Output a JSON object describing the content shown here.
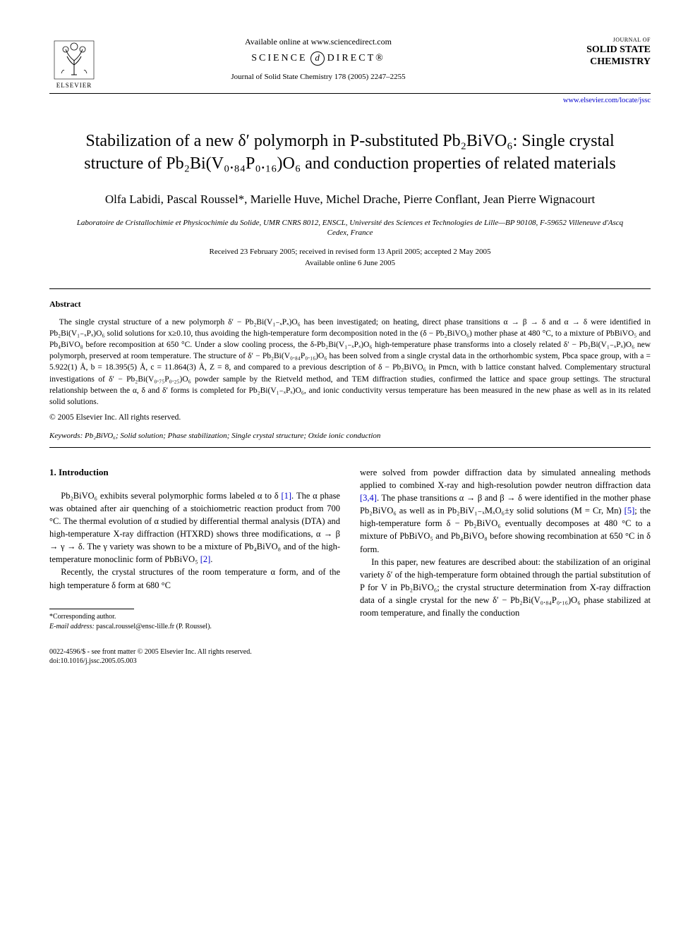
{
  "header": {
    "publisher_name": "ELSEVIER",
    "available_text": "Available online at www.sciencedirect.com",
    "sciencedirect_left": "SCIENCE",
    "sciencedirect_mid": "d",
    "sciencedirect_right": "DIRECT®",
    "journal_reference": "Journal of Solid State Chemistry 178 (2005) 2247–2255",
    "journal_small": "JOURNAL OF",
    "journal_title_1": "SOLID STATE",
    "journal_title_2": "CHEMISTRY",
    "journal_link": "www.elsevier.com/locate/jssc"
  },
  "title": "Stabilization of a new δ′ polymorph in P-substituted Pb₂BiVO₆: Single crystal structure of Pb₂Bi(V₀.₈₄P₀.₁₆)O₆ and conduction properties of related materials",
  "authors": "Olfa Labidi, Pascal Roussel*, Marielle Huve, Michel Drache, Pierre Conflant, Jean Pierre Wignacourt",
  "affiliation": "Laboratoire de Cristallochimie et Physicochimie du Solide, UMR CNRS 8012, ENSCL, Université des Sciences et Technologies de Lille—BP 90108, F-59652 Villeneuve d'Ascq Cedex, France",
  "dates_line1": "Received 23 February 2005; received in revised form 13 April 2005; accepted 2 May 2005",
  "dates_line2": "Available online 6 June 2005",
  "abstract_heading": "Abstract",
  "abstract_text": "The single crystal structure of a new polymorph δ′ − Pb₂Bi(V₁₋ₓPₓ)O₆ has been investigated; on heating, direct phase transitions α → β → δ and α → δ were identified in Pb₂Bi(V₁₋ₓPₓ)O₆ solid solutions for x≥0.10, thus avoiding the high-temperature form decomposition noted in the (δ − Pb₂BiVO₆) mother phase at 480 °C, to a mixture of PbBiVO₅ and Pb₄BiVO₈ before recomposition at 650 °C. Under a slow cooling process, the δ-Pb₂Bi(V₁₋ₓPₓ)O₆ high-temperature phase transforms into a closely related δ′ − Pb₂Bi(V₁₋ₓPₓ)O₆ new polymorph, preserved at room temperature. The structure of δ′ − Pb₂Bi(V₀.₈₄P₀.₁₆)O₆ has been solved from a single crystal data in the orthorhombic system, Pbca space group, with a = 5.922(1) Å, b = 18.395(5) Å, c = 11.864(3) Å, Z = 8, and compared to a previous description of δ − Pb₂BiVO₆ in Pmcn, with b lattice constant halved. Complementary structural investigations of δ′ − Pb₂Bi(V₀.₇₅P₀.₂₅)O₆ powder sample by the Rietveld method, and TEM diffraction studies, confirmed the lattice and space group settings. The structural relationship between the α, δ and δ′ forms is completed for Pb₂Bi(V₁₋ₓPₓ)O₆, and ionic conductivity versus temperature has been measured in the new phase as well as in its related solid solutions.",
  "copyright": "© 2005 Elsevier Inc. All rights reserved.",
  "keywords_label": "Keywords:",
  "keywords": "Pb₂BiVO₆; Solid solution; Phase stabilization; Single crystal structure; Oxide ionic conduction",
  "intro_heading": "1. Introduction",
  "col_left_p1": "Pb₂BiVO₆ exhibits several polymorphic forms labeled α to δ [1]. The α phase was obtained after air quenching of a stoichiometric reaction product from 700 °C. The thermal evolution of α studied by differential thermal analysis (DTA) and high-temperature X-ray diffraction (HTXRD) shows three modifications, α → β → γ → δ. The γ variety was shown to be a mixture of Pb₄BiVO₈ and of the high-temperature monoclinic form of PbBiVO₅ [2].",
  "col_left_p2": "Recently, the crystal structures of the room temperature α form, and of the high temperature δ form at 680 °C",
  "col_right_p1": "were solved from powder diffraction data by simulated annealing methods applied to combined X-ray and high-resolution powder neutron diffraction data [3,4]. The phase transitions α → β and β → δ were identified in the mother phase Pb₂BiVO₆ as well as in Pb₂BiV₁₋ₓMₓO₆±y solid solutions (M = Cr, Mn) [5]; the high-temperature form δ − Pb₂BiVO₆ eventually decomposes at 480 °C to a mixture of PbBiVO₅ and Pb₄BiVO₈ before showing recombination at 650 °C in δ form.",
  "col_right_p2": "In this paper, new features are described about: the stabilization of an original variety δ′ of the high-temperature form obtained through the partial substitution of P for V in Pb₂BiVO₆; the crystal structure determination from X-ray diffraction data of a single crystal for the new δ′ − Pb₂Bi(V₀.₈₄P₀.₁₆)O₆ phase stabilized at room temperature, and finally the conduction",
  "footnote_corr": "*Corresponding author.",
  "footnote_email_label": "E-mail address:",
  "footnote_email": "pascal.roussel@ensc-lille.fr (P. Roussel).",
  "bottom_line1": "0022-4596/$ - see front matter © 2005 Elsevier Inc. All rights reserved.",
  "bottom_line2": "doi:10.1016/j.jssc.2005.05.003",
  "colors": {
    "text": "#000000",
    "link": "#0000cc",
    "background": "#ffffff"
  }
}
